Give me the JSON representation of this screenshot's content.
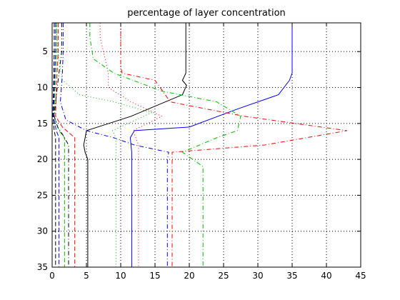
{
  "chart_data": {
    "type": "line",
    "title": "percentage of layer concentration",
    "xlabel": "",
    "ylabel": "",
    "xlim": [
      0,
      45
    ],
    "ylim": [
      1,
      35
    ],
    "y_reversed": true,
    "grid": true,
    "x_ticks": [
      0,
      5,
      10,
      15,
      20,
      25,
      30,
      35,
      40,
      45
    ],
    "y_ticks": [
      5,
      10,
      15,
      20,
      25,
      30,
      35
    ],
    "series": [
      {
        "color": "#0000ff",
        "style": "solid",
        "x": [
          35,
          35,
          35,
          34.6,
          33,
          27,
          20,
          12,
          11.4,
          11.6,
          11.6,
          11.6
        ],
        "y": [
          1,
          5,
          8,
          9,
          11,
          13,
          15.5,
          16,
          17,
          19,
          25,
          35
        ]
      },
      {
        "color": "#000000",
        "style": "solid",
        "x": [
          19.5,
          19.5,
          19.5,
          19,
          19.6,
          19,
          11.5,
          5,
          4.6,
          4.8,
          5.2,
          5.2
        ],
        "y": [
          1,
          5,
          8,
          9,
          9.7,
          11,
          14,
          16,
          18,
          19,
          20,
          35
        ]
      },
      {
        "color": "#ff0000",
        "style": "dashdot",
        "x": [
          10,
          10,
          10,
          10.2,
          15,
          16.5,
          17.2,
          28,
          43,
          31,
          17.5,
          17.5
        ],
        "y": [
          1,
          5,
          7,
          8,
          9,
          11,
          12,
          14,
          16,
          18,
          19,
          35
        ]
      },
      {
        "color": "#00bb00",
        "style": "dashdot",
        "x": [
          5.5,
          5.5,
          6,
          9,
          16,
          24,
          27.5,
          27,
          24,
          19,
          22,
          22
        ],
        "y": [
          1,
          3,
          6,
          8,
          10.5,
          12,
          14,
          16,
          17,
          19,
          21,
          35
        ]
      },
      {
        "color": "#0000ff",
        "style": "dashdot",
        "x": [
          1.6,
          1.6,
          1.5,
          1.2,
          2,
          5,
          9,
          12,
          17,
          16.8,
          16.8
        ],
        "y": [
          1,
          5,
          8,
          12,
          14.5,
          16,
          17,
          18,
          19,
          20,
          35
        ]
      },
      {
        "color": "#ff0000",
        "style": "dotted",
        "x": [
          7,
          7,
          8.2,
          8.2,
          11.5,
          16,
          11.8,
          12.6,
          12.6
        ],
        "y": [
          1,
          3,
          8,
          10,
          12,
          14,
          16,
          18,
          35
        ]
      },
      {
        "color": "#00bb00",
        "style": "dotted",
        "x": [
          0.6,
          0.8,
          1.5,
          4,
          9,
          14.5,
          8.8,
          9.3,
          9.3
        ],
        "y": [
          1,
          5,
          9,
          11,
          12,
          13.5,
          16,
          17,
          35
        ]
      },
      {
        "color": "#ff0000",
        "style": "dashed",
        "x": [
          0.9,
          0.9,
          0.6,
          0.5,
          1.5,
          3.3,
          3.3
        ],
        "y": [
          1,
          5,
          10,
          14,
          15.5,
          17,
          35
        ]
      },
      {
        "color": "#00bb00",
        "style": "dashed",
        "x": [
          0.7,
          0.7,
          0.4,
          0.3,
          1,
          1.8,
          1.8
        ],
        "y": [
          1,
          5,
          10,
          14,
          16,
          17,
          35
        ]
      },
      {
        "color": "#000000",
        "style": "dashdot",
        "x": [
          1.4,
          1.4,
          1,
          0.5,
          0.3,
          0.8,
          1.5,
          2.4,
          2.4
        ],
        "y": [
          1,
          5,
          8,
          12,
          14,
          15.5,
          16.5,
          18,
          35
        ]
      },
      {
        "color": "#0000ff",
        "style": "dashed",
        "x": [
          0.5,
          0.5,
          0.3,
          0.2,
          0.6,
          1,
          1
        ],
        "y": [
          1,
          5,
          10,
          14,
          16,
          17,
          35
        ]
      },
      {
        "color": "#000000",
        "style": "dashed",
        "x": [
          0.3,
          0.3,
          0.2,
          0.1,
          0.3,
          0.5,
          0.5
        ],
        "y": [
          1,
          5,
          10,
          14,
          16,
          17,
          35
        ]
      }
    ]
  }
}
